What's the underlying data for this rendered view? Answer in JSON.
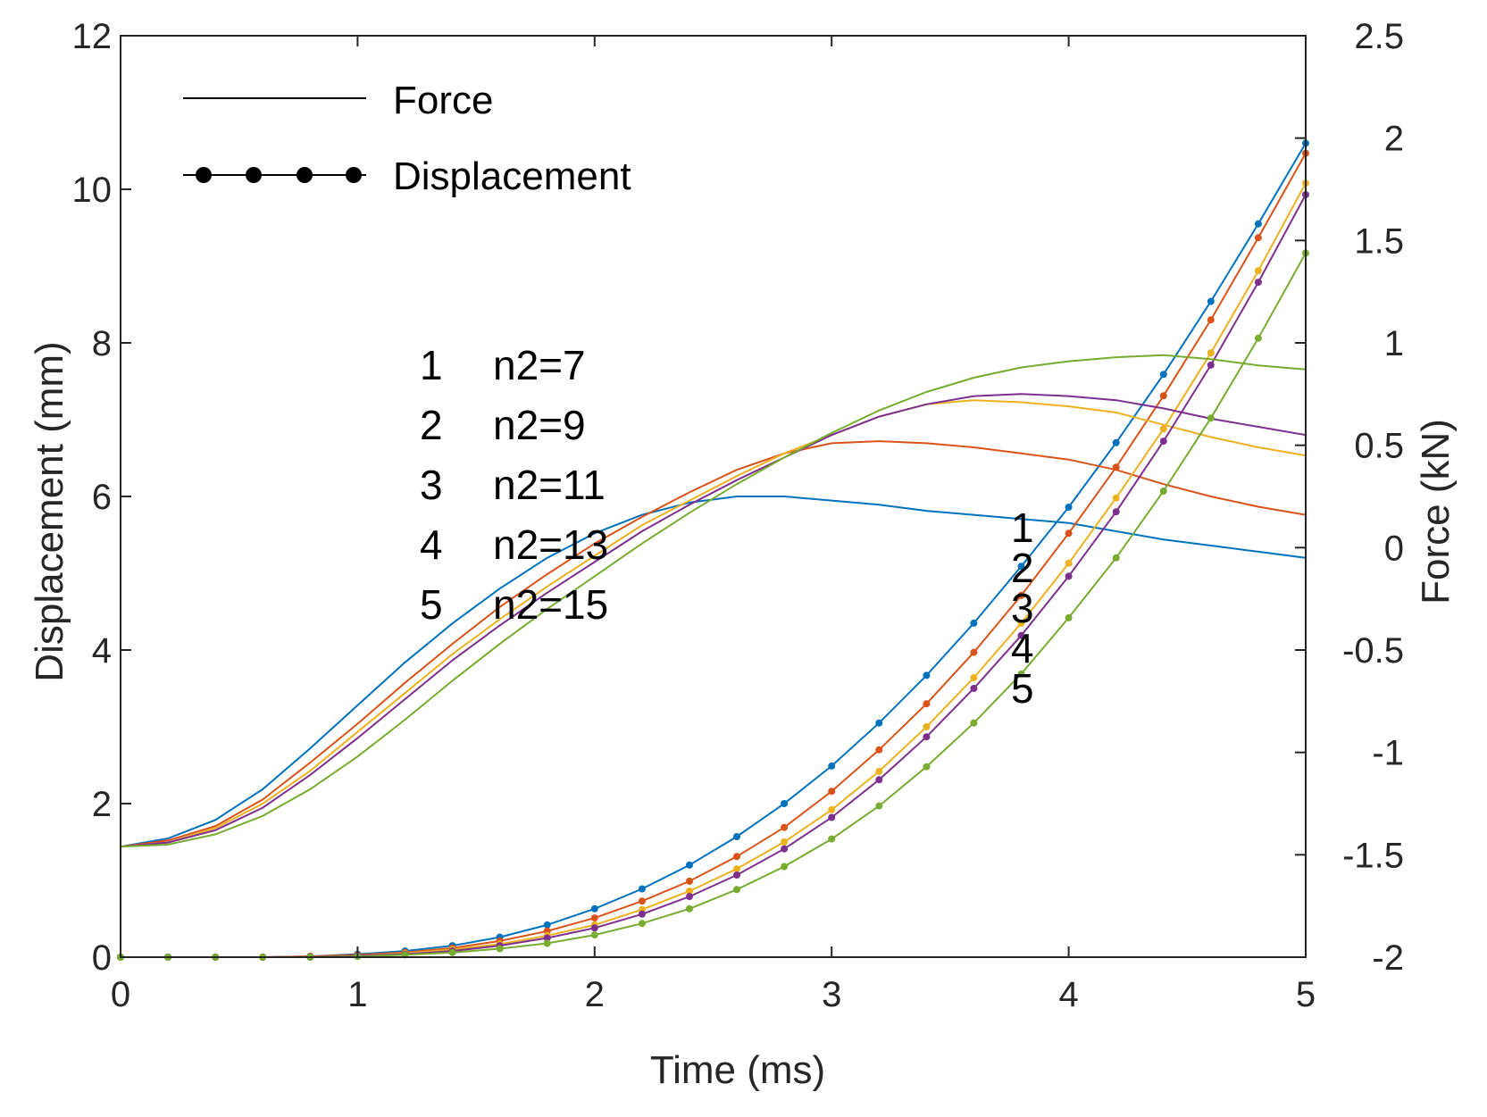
{
  "chart_data": {
    "type": "line",
    "xlabel": "Time (ms)",
    "ylabel": "Displacement (mm)",
    "y2label": "Force (kN)",
    "xlim": [
      0,
      5
    ],
    "ylim": [
      0,
      12
    ],
    "y2lim": [
      -2,
      2.5
    ],
    "xticks": [
      "0",
      "1",
      "2",
      "3",
      "4",
      "5"
    ],
    "yticks": [
      "0",
      "2",
      "4",
      "6",
      "8",
      "10",
      "12"
    ],
    "y2ticks": [
      "-2",
      "-1.5",
      "-1",
      "-0.5",
      "0",
      "0.5",
      "1",
      "1.5",
      "2",
      "2.5"
    ],
    "grid": false,
    "legend": {
      "position": "top-left",
      "entries": [
        "Force",
        "Displacement"
      ]
    },
    "x": [
      0,
      0.2,
      0.4,
      0.6,
      0.8,
      1.0,
      1.2,
      1.4,
      1.6,
      1.8,
      2.0,
      2.2,
      2.4,
      2.6,
      2.8,
      3.0,
      3.2,
      3.4,
      3.6,
      3.8,
      4.0,
      4.2,
      4.4,
      4.6,
      4.8,
      5.0
    ],
    "series": [
      {
        "name": "n2=7",
        "label": "1",
        "color": "#0072BD",
        "force": [
          -1.46,
          -1.42,
          -1.33,
          -1.18,
          -0.98,
          -0.77,
          -0.56,
          -0.37,
          -0.2,
          -0.05,
          0.07,
          0.16,
          0.22,
          0.25,
          0.25,
          0.23,
          0.21,
          0.18,
          0.16,
          0.14,
          0.12,
          0.08,
          0.04,
          0.01,
          -0.02,
          -0.05
        ],
        "displacement": [
          0,
          0,
          0,
          0,
          0.01,
          0.04,
          0.08,
          0.15,
          0.26,
          0.42,
          0.63,
          0.89,
          1.2,
          1.57,
          2.0,
          2.49,
          3.05,
          3.67,
          4.35,
          5.09,
          5.86,
          6.7,
          7.59,
          8.54,
          9.55,
          10.6
        ]
      },
      {
        "name": "n2=9",
        "label": "2",
        "color": "#D95319",
        "force": [
          -1.46,
          -1.43,
          -1.36,
          -1.23,
          -1.05,
          -0.86,
          -0.66,
          -0.47,
          -0.29,
          -0.13,
          0.02,
          0.15,
          0.27,
          0.38,
          0.46,
          0.51,
          0.52,
          0.51,
          0.49,
          0.46,
          0.43,
          0.38,
          0.31,
          0.25,
          0.2,
          0.16
        ],
        "displacement": [
          0,
          0,
          0,
          0,
          0.01,
          0.03,
          0.06,
          0.12,
          0.21,
          0.34,
          0.51,
          0.73,
          0.99,
          1.31,
          1.69,
          2.16,
          2.7,
          3.3,
          3.97,
          4.71,
          5.52,
          6.38,
          7.31,
          8.3,
          9.37,
          10.47
        ]
      },
      {
        "name": "n2=11",
        "label": "3",
        "color": "#EDB120",
        "force": [
          -1.46,
          -1.44,
          -1.37,
          -1.25,
          -1.09,
          -0.9,
          -0.71,
          -0.52,
          -0.35,
          -0.19,
          -0.04,
          0.11,
          0.23,
          0.35,
          0.46,
          0.55,
          0.64,
          0.7,
          0.72,
          0.71,
          0.69,
          0.66,
          0.6,
          0.54,
          0.49,
          0.45
        ],
        "displacement": [
          0,
          0,
          0,
          0,
          0,
          0.02,
          0.05,
          0.1,
          0.17,
          0.28,
          0.42,
          0.62,
          0.86,
          1.15,
          1.5,
          1.92,
          2.42,
          3.0,
          3.64,
          4.35,
          5.13,
          5.98,
          6.88,
          7.87,
          8.94,
          10.08
        ]
      },
      {
        "name": "n2=13",
        "label": "4",
        "color": "#7E2F8E",
        "force": [
          -1.46,
          -1.44,
          -1.38,
          -1.27,
          -1.11,
          -0.93,
          -0.74,
          -0.55,
          -0.38,
          -0.22,
          -0.07,
          0.08,
          0.21,
          0.33,
          0.44,
          0.55,
          0.64,
          0.7,
          0.74,
          0.75,
          0.74,
          0.72,
          0.68,
          0.63,
          0.59,
          0.55
        ],
        "displacement": [
          0,
          0,
          0,
          0,
          0,
          0.02,
          0.04,
          0.08,
          0.15,
          0.25,
          0.38,
          0.56,
          0.79,
          1.07,
          1.41,
          1.82,
          2.31,
          2.87,
          3.5,
          4.19,
          4.96,
          5.8,
          6.72,
          7.71,
          8.79,
          9.93
        ]
      },
      {
        "name": "n2=15",
        "label": "5",
        "color": "#77AC30",
        "force": [
          -1.46,
          -1.45,
          -1.4,
          -1.31,
          -1.18,
          -1.02,
          -0.84,
          -0.65,
          -0.47,
          -0.3,
          -0.14,
          0.02,
          0.17,
          0.31,
          0.44,
          0.56,
          0.67,
          0.76,
          0.83,
          0.88,
          0.91,
          0.93,
          0.94,
          0.92,
          0.89,
          0.87
        ],
        "displacement": [
          0,
          0,
          0,
          0,
          0,
          0.01,
          0.03,
          0.06,
          0.11,
          0.18,
          0.29,
          0.44,
          0.63,
          0.88,
          1.18,
          1.54,
          1.97,
          2.48,
          3.05,
          3.69,
          4.42,
          5.2,
          6.07,
          7.02,
          8.06,
          9.17
        ]
      }
    ],
    "annotations": {
      "left_labels": [
        "1",
        "2",
        "3",
        "4",
        "5"
      ],
      "left_values": [
        "n2=7",
        "n2=9",
        "n2=11",
        "n2=13",
        "n2=15"
      ],
      "right_labels": [
        "1",
        "2",
        "3",
        "4",
        "5"
      ]
    }
  }
}
